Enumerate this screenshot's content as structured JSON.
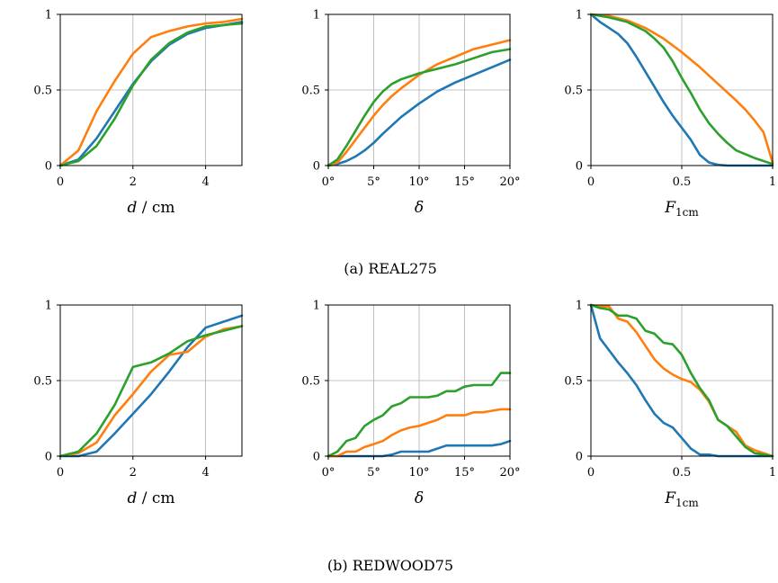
{
  "colors": {
    "blue": "#1f77b4",
    "orange": "#ff7f0e",
    "green": "#2ca02c"
  },
  "captions": {
    "top": "(a) REAL275",
    "bottom": "(b) REDWOOD75"
  },
  "chart_data": [
    {
      "type": "line",
      "xlabel": "d / cm",
      "xlim": [
        0,
        5
      ],
      "ylim": [
        0,
        1
      ],
      "xticks": [
        0,
        2,
        4
      ],
      "xtick_labels": [
        "0",
        "2",
        "4"
      ],
      "yticks": [
        0,
        0.5,
        1
      ],
      "ytick_labels": [
        "0",
        "0.5",
        "1"
      ],
      "grid": true,
      "series": [
        {
          "color": "blue",
          "x": [
            0,
            0.5,
            1,
            1.5,
            2,
            2.5,
            3,
            3.5,
            4,
            4.5,
            5
          ],
          "y": [
            0,
            0.04,
            0.18,
            0.36,
            0.54,
            0.69,
            0.8,
            0.87,
            0.91,
            0.93,
            0.95
          ]
        },
        {
          "color": "orange",
          "x": [
            0,
            0.5,
            1,
            1.5,
            2,
            2.5,
            3,
            3.5,
            4,
            4.5,
            5
          ],
          "y": [
            0,
            0.1,
            0.36,
            0.56,
            0.74,
            0.85,
            0.89,
            0.92,
            0.94,
            0.95,
            0.97
          ]
        },
        {
          "color": "green",
          "x": [
            0,
            0.5,
            1,
            1.5,
            2,
            2.5,
            3,
            3.5,
            4,
            4.5,
            5
          ],
          "y": [
            0,
            0.03,
            0.13,
            0.31,
            0.53,
            0.7,
            0.81,
            0.88,
            0.92,
            0.93,
            0.94
          ]
        }
      ]
    },
    {
      "type": "line",
      "xlabel": "δ",
      "xlim": [
        0,
        20
      ],
      "ylim": [
        0,
        1
      ],
      "xticks": [
        0,
        5,
        10,
        15,
        20
      ],
      "xtick_labels": [
        "0°",
        "5°",
        "10°",
        "15°",
        "20°"
      ],
      "yticks": [
        0,
        0.5,
        1
      ],
      "ytick_labels": [
        "0",
        "0.5",
        "1"
      ],
      "grid": true,
      "series": [
        {
          "color": "blue",
          "x": [
            0,
            1,
            2,
            3,
            4,
            5,
            6,
            8,
            10,
            12,
            14,
            16,
            18,
            20
          ],
          "y": [
            0,
            0.01,
            0.03,
            0.06,
            0.1,
            0.15,
            0.21,
            0.32,
            0.41,
            0.49,
            0.55,
            0.6,
            0.65,
            0.7
          ]
        },
        {
          "color": "orange",
          "x": [
            0,
            1,
            2,
            3,
            4,
            5,
            6,
            7,
            8,
            10,
            12,
            14,
            16,
            18,
            20
          ],
          "y": [
            0,
            0.02,
            0.09,
            0.17,
            0.25,
            0.33,
            0.4,
            0.46,
            0.51,
            0.6,
            0.67,
            0.72,
            0.77,
            0.8,
            0.83
          ]
        },
        {
          "color": "green",
          "x": [
            0,
            1,
            2,
            3,
            4,
            5,
            6,
            7,
            8,
            9,
            10,
            12,
            14,
            16,
            18,
            20
          ],
          "y": [
            0,
            0.04,
            0.13,
            0.23,
            0.33,
            0.42,
            0.49,
            0.54,
            0.57,
            0.59,
            0.61,
            0.64,
            0.67,
            0.71,
            0.75,
            0.77
          ]
        }
      ]
    },
    {
      "type": "line",
      "xlabel": "F1cm",
      "xlim": [
        0,
        1
      ],
      "ylim": [
        0,
        1
      ],
      "xticks": [
        0,
        0.5,
        1
      ],
      "xtick_labels": [
        "0",
        "0.5",
        "1"
      ],
      "yticks": [
        0,
        0.5,
        1
      ],
      "ytick_labels": [
        "0",
        "0.5",
        "1"
      ],
      "grid": true,
      "series": [
        {
          "color": "blue",
          "x": [
            0,
            0.05,
            0.1,
            0.15,
            0.2,
            0.25,
            0.3,
            0.35,
            0.4,
            0.45,
            0.5,
            0.55,
            0.6,
            0.65,
            0.7,
            0.75,
            0.8,
            0.9,
            1
          ],
          "y": [
            1,
            0.95,
            0.91,
            0.87,
            0.81,
            0.72,
            0.62,
            0.52,
            0.42,
            0.33,
            0.25,
            0.17,
            0.07,
            0.02,
            0.005,
            0,
            0,
            0,
            0
          ]
        },
        {
          "color": "orange",
          "x": [
            0,
            0.1,
            0.2,
            0.3,
            0.4,
            0.5,
            0.6,
            0.7,
            0.8,
            0.85,
            0.9,
            0.95,
            1
          ],
          "y": [
            1,
            0.99,
            0.96,
            0.91,
            0.84,
            0.75,
            0.65,
            0.54,
            0.43,
            0.37,
            0.3,
            0.22,
            0.02
          ]
        },
        {
          "color": "green",
          "x": [
            0,
            0.1,
            0.2,
            0.3,
            0.35,
            0.4,
            0.45,
            0.5,
            0.55,
            0.6,
            0.65,
            0.7,
            0.75,
            0.8,
            0.9,
            1
          ],
          "y": [
            1,
            0.98,
            0.95,
            0.89,
            0.84,
            0.78,
            0.69,
            0.58,
            0.48,
            0.37,
            0.28,
            0.21,
            0.15,
            0.1,
            0.05,
            0.01
          ]
        }
      ]
    },
    {
      "type": "line",
      "xlabel": "d / cm",
      "xlim": [
        0,
        5
      ],
      "ylim": [
        0,
        1
      ],
      "xticks": [
        0,
        2,
        4
      ],
      "xtick_labels": [
        "0",
        "2",
        "4"
      ],
      "yticks": [
        0,
        0.5,
        1
      ],
      "ytick_labels": [
        "0",
        "0.5",
        "1"
      ],
      "grid": true,
      "series": [
        {
          "color": "blue",
          "x": [
            0,
            0.5,
            1,
            1.5,
            2,
            2.5,
            3,
            3.5,
            4,
            4.5,
            5
          ],
          "y": [
            0,
            0,
            0.03,
            0.15,
            0.28,
            0.41,
            0.56,
            0.72,
            0.85,
            0.89,
            0.93
          ]
        },
        {
          "color": "orange",
          "x": [
            0,
            0.5,
            1,
            1.5,
            2,
            2.5,
            3,
            3.5,
            4,
            4.5,
            5
          ],
          "y": [
            0,
            0.02,
            0.09,
            0.27,
            0.41,
            0.56,
            0.67,
            0.69,
            0.79,
            0.84,
            0.86
          ]
        },
        {
          "color": "green",
          "x": [
            0,
            0.5,
            1,
            1.5,
            2,
            2.5,
            3,
            3.5,
            4,
            4.5,
            5
          ],
          "y": [
            0,
            0.03,
            0.15,
            0.34,
            0.59,
            0.62,
            0.68,
            0.76,
            0.8,
            0.83,
            0.86
          ]
        }
      ]
    },
    {
      "type": "line",
      "xlabel": "δ",
      "xlim": [
        0,
        20
      ],
      "ylim": [
        0,
        1
      ],
      "xticks": [
        0,
        5,
        10,
        15,
        20
      ],
      "xtick_labels": [
        "0°",
        "5°",
        "10°",
        "15°",
        "20°"
      ],
      "yticks": [
        0,
        0.5,
        1
      ],
      "ytick_labels": [
        "0",
        "0.5",
        "1"
      ],
      "grid": true,
      "series": [
        {
          "color": "blue",
          "x": [
            0,
            1,
            2,
            3,
            4,
            5,
            6,
            7,
            8,
            9,
            10,
            11,
            12,
            13,
            14,
            15,
            16,
            17,
            18,
            19,
            20
          ],
          "y": [
            0,
            0,
            0,
            0,
            0,
            0,
            0,
            0.01,
            0.03,
            0.03,
            0.03,
            0.03,
            0.05,
            0.07,
            0.07,
            0.07,
            0.07,
            0.07,
            0.07,
            0.08,
            0.1
          ]
        },
        {
          "color": "orange",
          "x": [
            0,
            1,
            2,
            3,
            4,
            5,
            6,
            7,
            8,
            9,
            10,
            11,
            12,
            13,
            14,
            15,
            16,
            17,
            18,
            19,
            20
          ],
          "y": [
            0,
            0,
            0.03,
            0.03,
            0.06,
            0.08,
            0.1,
            0.14,
            0.17,
            0.19,
            0.2,
            0.22,
            0.24,
            0.27,
            0.27,
            0.27,
            0.29,
            0.29,
            0.3,
            0.31,
            0.31
          ]
        },
        {
          "color": "green",
          "x": [
            0,
            1,
            2,
            3,
            4,
            5,
            6,
            7,
            8,
            9,
            10,
            11,
            12,
            13,
            14,
            15,
            16,
            17,
            18,
            19,
            20
          ],
          "y": [
            0,
            0.03,
            0.1,
            0.12,
            0.2,
            0.24,
            0.27,
            0.33,
            0.35,
            0.39,
            0.39,
            0.39,
            0.4,
            0.43,
            0.43,
            0.46,
            0.47,
            0.47,
            0.47,
            0.55,
            0.55
          ]
        }
      ]
    },
    {
      "type": "line",
      "xlabel": "F1cm",
      "xlim": [
        0,
        1
      ],
      "ylim": [
        0,
        1
      ],
      "xticks": [
        0,
        0.5,
        1
      ],
      "xtick_labels": [
        "0",
        "0.5",
        "1"
      ],
      "yticks": [
        0,
        0.5,
        1
      ],
      "ytick_labels": [
        "0",
        "0.5",
        "1"
      ],
      "grid": true,
      "series": [
        {
          "color": "blue",
          "x": [
            0,
            0.05,
            0.1,
            0.15,
            0.2,
            0.25,
            0.3,
            0.35,
            0.4,
            0.45,
            0.5,
            0.55,
            0.6,
            0.65,
            0.7,
            0.8,
            0.9,
            1
          ],
          "y": [
            1,
            0.78,
            0.7,
            0.62,
            0.55,
            0.47,
            0.37,
            0.28,
            0.22,
            0.19,
            0.12,
            0.05,
            0.01,
            0.01,
            0,
            0,
            0,
            0
          ]
        },
        {
          "color": "orange",
          "x": [
            0,
            0.05,
            0.1,
            0.15,
            0.2,
            0.25,
            0.3,
            0.35,
            0.4,
            0.45,
            0.5,
            0.55,
            0.6,
            0.65,
            0.7,
            0.75,
            0.8,
            0.85,
            0.9,
            0.95,
            1
          ],
          "y": [
            1,
            0.99,
            0.99,
            0.91,
            0.89,
            0.82,
            0.73,
            0.64,
            0.58,
            0.54,
            0.51,
            0.49,
            0.44,
            0.36,
            0.24,
            0.2,
            0.16,
            0.07,
            0.04,
            0.02,
            0
          ]
        },
        {
          "color": "green",
          "x": [
            0,
            0.05,
            0.1,
            0.15,
            0.2,
            0.25,
            0.3,
            0.35,
            0.4,
            0.45,
            0.5,
            0.55,
            0.6,
            0.65,
            0.7,
            0.75,
            0.8,
            0.85,
            0.9,
            0.95,
            1
          ],
          "y": [
            1,
            0.98,
            0.97,
            0.93,
            0.93,
            0.91,
            0.83,
            0.81,
            0.75,
            0.74,
            0.67,
            0.55,
            0.45,
            0.37,
            0.24,
            0.2,
            0.13,
            0.06,
            0.02,
            0.01,
            0
          ]
        }
      ]
    }
  ]
}
